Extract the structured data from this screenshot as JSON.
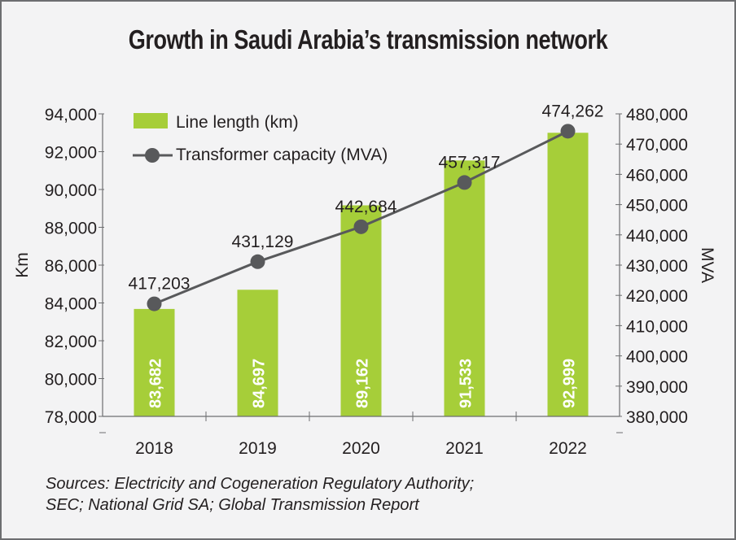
{
  "chart_data": {
    "type": "bar+line",
    "title": "Growth in Saudi Arabia’s transmission network",
    "categories": [
      "2018",
      "2019",
      "2020",
      "2021",
      "2022"
    ],
    "series": [
      {
        "name": "Line length (km)",
        "type": "bar",
        "axis": "left",
        "color": "#a6ce39",
        "values": [
          83682,
          84697,
          89162,
          91533,
          92999
        ],
        "labels": [
          "83,682",
          "84,697",
          "89,162",
          "91,533",
          "92,999"
        ]
      },
      {
        "name": "Transformer capacity (MVA)",
        "type": "line",
        "axis": "right",
        "color": "#58595b",
        "values": [
          417203,
          431129,
          442684,
          457317,
          474262
        ],
        "labels": [
          "417,203",
          "431,129",
          "442,684",
          "457,317",
          "474,262"
        ]
      }
    ],
    "ylabel_left": "Km",
    "ylabel_right": "MVA",
    "ylim_left": [
      78000,
      94000
    ],
    "ylim_right": [
      380000,
      480000
    ],
    "yticks_left": [
      "78,000",
      "80,000",
      "82,000",
      "84,000",
      "86,000",
      "88,000",
      "90,000",
      "92,000",
      "94,000"
    ],
    "yticks_right": [
      "380,000",
      "390,000",
      "400,000",
      "410,000",
      "420,000",
      "430,000",
      "440,000",
      "450,000",
      "460,000",
      "470,000",
      "480,000"
    ],
    "legend_position": "top-left",
    "grid": false
  },
  "sources": [
    "Sources: Electricity and Cogeneration Regulatory Authority;",
    "SEC; National Grid SA; Global Transmission Report"
  ]
}
